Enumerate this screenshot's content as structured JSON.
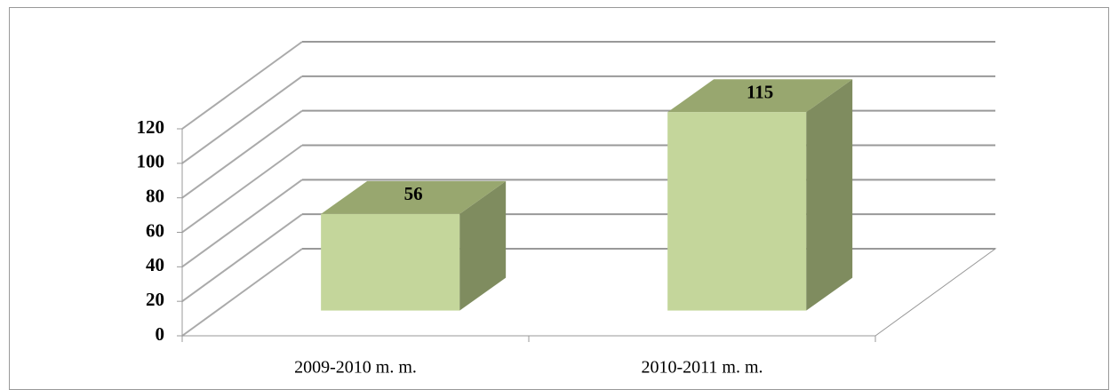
{
  "chart_data": {
    "type": "bar3d",
    "categories": [
      "2009-2010 m. m.",
      "2010-2011 m. m."
    ],
    "values": [
      56,
      115
    ],
    "color": "#c4d69b",
    "ylim": [
      0,
      120
    ],
    "yticks": [
      0,
      20,
      40,
      60,
      80,
      100,
      120
    ],
    "grid": true
  }
}
